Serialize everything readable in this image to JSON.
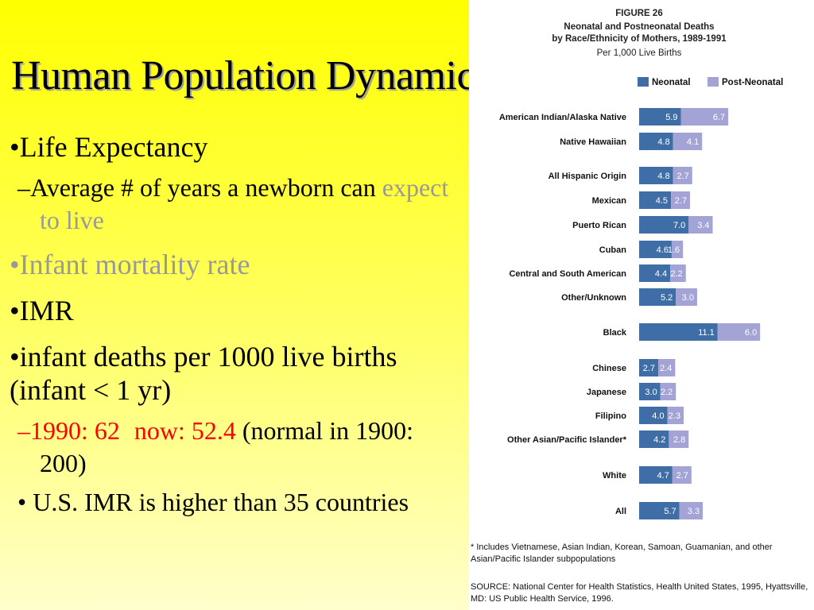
{
  "slide": {
    "title": "Human Population Dynamics",
    "bullets": {
      "b1": "•Life Expectancy",
      "b1_sub_a": "–Average # of years a newborn can ",
      "b1_sub_b": "expect to live",
      "b2": "•Infant mortality rate",
      "b3": "•IMR",
      "b4": "•infant deaths per 1000 live births (infant < 1 yr)",
      "b4_sub_a": "–1990: 62",
      "b4_sub_b": "now: 52.4",
      "b4_sub_c": " (normal in 1900: 200)",
      "b5": "• U.S. IMR is higher than 35 countries"
    }
  },
  "figure": {
    "label": "FIGURE 26",
    "title_line1": "Neonatal and Postneonatal Deaths",
    "title_line2": "by Race/Ethnicity of Mothers, 1989-1991",
    "subtitle": "Per 1,000 Live Births",
    "footnote": "* Includes Vietnamese, Asian Indian, Korean, Samoan, Guamanian, and other Asian/Pacific Islander subpopulations",
    "source": "SOURCE: National Center for Health Statistics, Health United States, 1995, Hyattsville, MD: US Public Health Service, 1996."
  },
  "colors": {
    "neonatal": "#3f6ea6",
    "post_neonatal": "#a3a3d6"
  },
  "chart_data": {
    "type": "bar",
    "orientation": "horizontal",
    "stacked": true,
    "title": "Neonatal and Postneonatal Deaths by Race/Ethnicity of Mothers, 1989-1991",
    "subtitle": "Per 1,000 Live Births",
    "legend": "top",
    "categories": [
      "American Indian/Alaska Native",
      "Native Hawaiian",
      "All Hispanic Origin",
      "Mexican",
      "Puerto Rican",
      "Cuban",
      "Central and South  American",
      "Other/Unknown",
      "Black",
      "Chinese",
      "Japanese",
      "Filipino",
      "Other Asian/Pacific Islander*",
      "White",
      "All"
    ],
    "series": [
      {
        "name": "Neonatal",
        "values": [
          5.9,
          4.8,
          4.8,
          4.5,
          7.0,
          4.6,
          4.4,
          5.2,
          11.1,
          2.7,
          3.0,
          4.0,
          4.2,
          4.7,
          5.7
        ]
      },
      {
        "name": "Post-Neonatal",
        "values": [
          6.7,
          4.1,
          2.7,
          2.7,
          3.4,
          1.6,
          2.2,
          3.0,
          6.0,
          2.4,
          2.2,
          2.3,
          2.8,
          2.7,
          3.3
        ]
      }
    ]
  }
}
